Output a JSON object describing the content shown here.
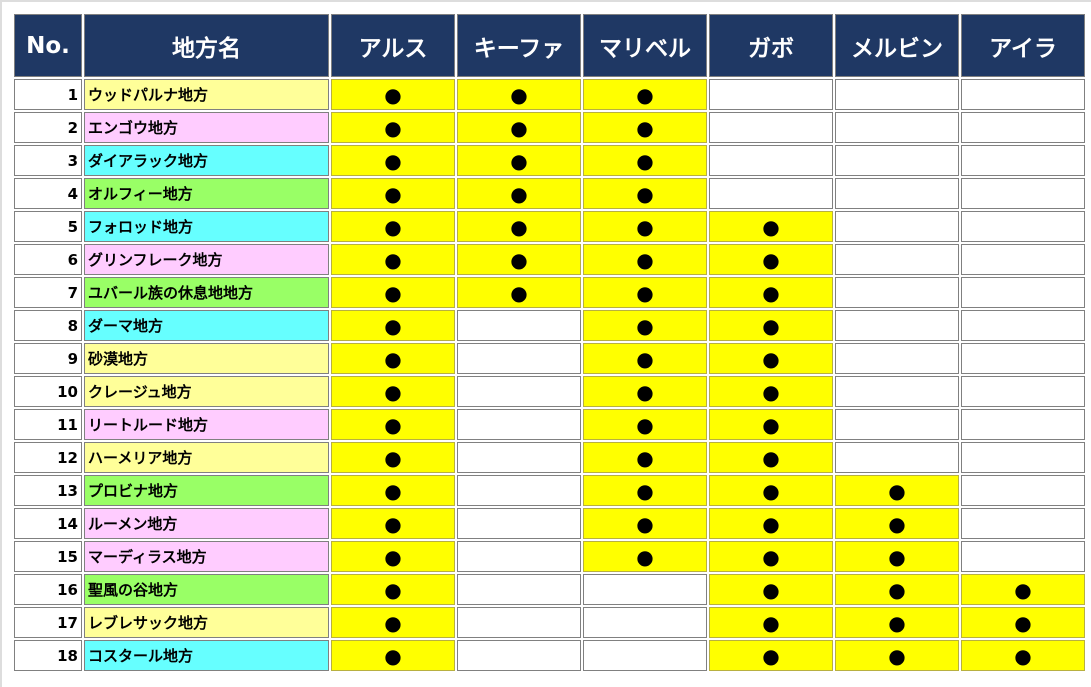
{
  "header": {
    "no": "No.",
    "name": "地方名",
    "characters": [
      "アルス",
      "キーファ",
      "マリベル",
      "ガボ",
      "メルビン",
      "アイラ"
    ]
  },
  "mark_symbol": "●",
  "colors": {
    "header": "#1f3864",
    "mark": "#ffff00",
    "yellow": "#ffff99",
    "pink": "#ffccff",
    "cyan": "#66ffff",
    "green": "#99ff66"
  },
  "rows": [
    {
      "no": "1",
      "name": "ウッドパルナ地方",
      "color": "yellow",
      "marks": [
        1,
        1,
        1,
        0,
        0,
        0
      ]
    },
    {
      "no": "2",
      "name": "エンゴウ地方",
      "color": "pink",
      "marks": [
        1,
        1,
        1,
        0,
        0,
        0
      ]
    },
    {
      "no": "3",
      "name": "ダイアラック地方",
      "color": "cyan",
      "marks": [
        1,
        1,
        1,
        0,
        0,
        0
      ]
    },
    {
      "no": "4",
      "name": "オルフィー地方",
      "color": "green",
      "marks": [
        1,
        1,
        1,
        0,
        0,
        0
      ]
    },
    {
      "no": "5",
      "name": "フォロッド地方",
      "color": "cyan",
      "marks": [
        1,
        1,
        1,
        1,
        0,
        0
      ]
    },
    {
      "no": "6",
      "name": "グリンフレーク地方",
      "color": "pink",
      "marks": [
        1,
        1,
        1,
        1,
        0,
        0
      ]
    },
    {
      "no": "7",
      "name": "ユバール族の休息地地方",
      "color": "green",
      "marks": [
        1,
        1,
        1,
        1,
        0,
        0
      ]
    },
    {
      "no": "8",
      "name": "ダーマ地方",
      "color": "cyan",
      "marks": [
        1,
        0,
        1,
        1,
        0,
        0
      ]
    },
    {
      "no": "9",
      "name": "砂漠地方",
      "color": "yellow",
      "marks": [
        1,
        0,
        1,
        1,
        0,
        0
      ]
    },
    {
      "no": "10",
      "name": "クレージュ地方",
      "color": "yellow",
      "marks": [
        1,
        0,
        1,
        1,
        0,
        0
      ]
    },
    {
      "no": "11",
      "name": "リートルード地方",
      "color": "pink",
      "marks": [
        1,
        0,
        1,
        1,
        0,
        0
      ]
    },
    {
      "no": "12",
      "name": "ハーメリア地方",
      "color": "yellow",
      "marks": [
        1,
        0,
        1,
        1,
        0,
        0
      ]
    },
    {
      "no": "13",
      "name": "プロビナ地方",
      "color": "green",
      "marks": [
        1,
        0,
        1,
        1,
        1,
        0
      ]
    },
    {
      "no": "14",
      "name": "ルーメン地方",
      "color": "pink",
      "marks": [
        1,
        0,
        1,
        1,
        1,
        0
      ]
    },
    {
      "no": "15",
      "name": "マーディラス地方",
      "color": "pink",
      "marks": [
        1,
        0,
        1,
        1,
        1,
        0
      ]
    },
    {
      "no": "16",
      "name": "聖風の谷地方",
      "color": "green",
      "marks": [
        1,
        0,
        0,
        1,
        1,
        1
      ]
    },
    {
      "no": "17",
      "name": "レブレサック地方",
      "color": "yellow",
      "marks": [
        1,
        0,
        0,
        1,
        1,
        1
      ]
    },
    {
      "no": "18",
      "name": "コスタール地方",
      "color": "cyan",
      "marks": [
        1,
        0,
        0,
        1,
        1,
        1
      ]
    }
  ]
}
